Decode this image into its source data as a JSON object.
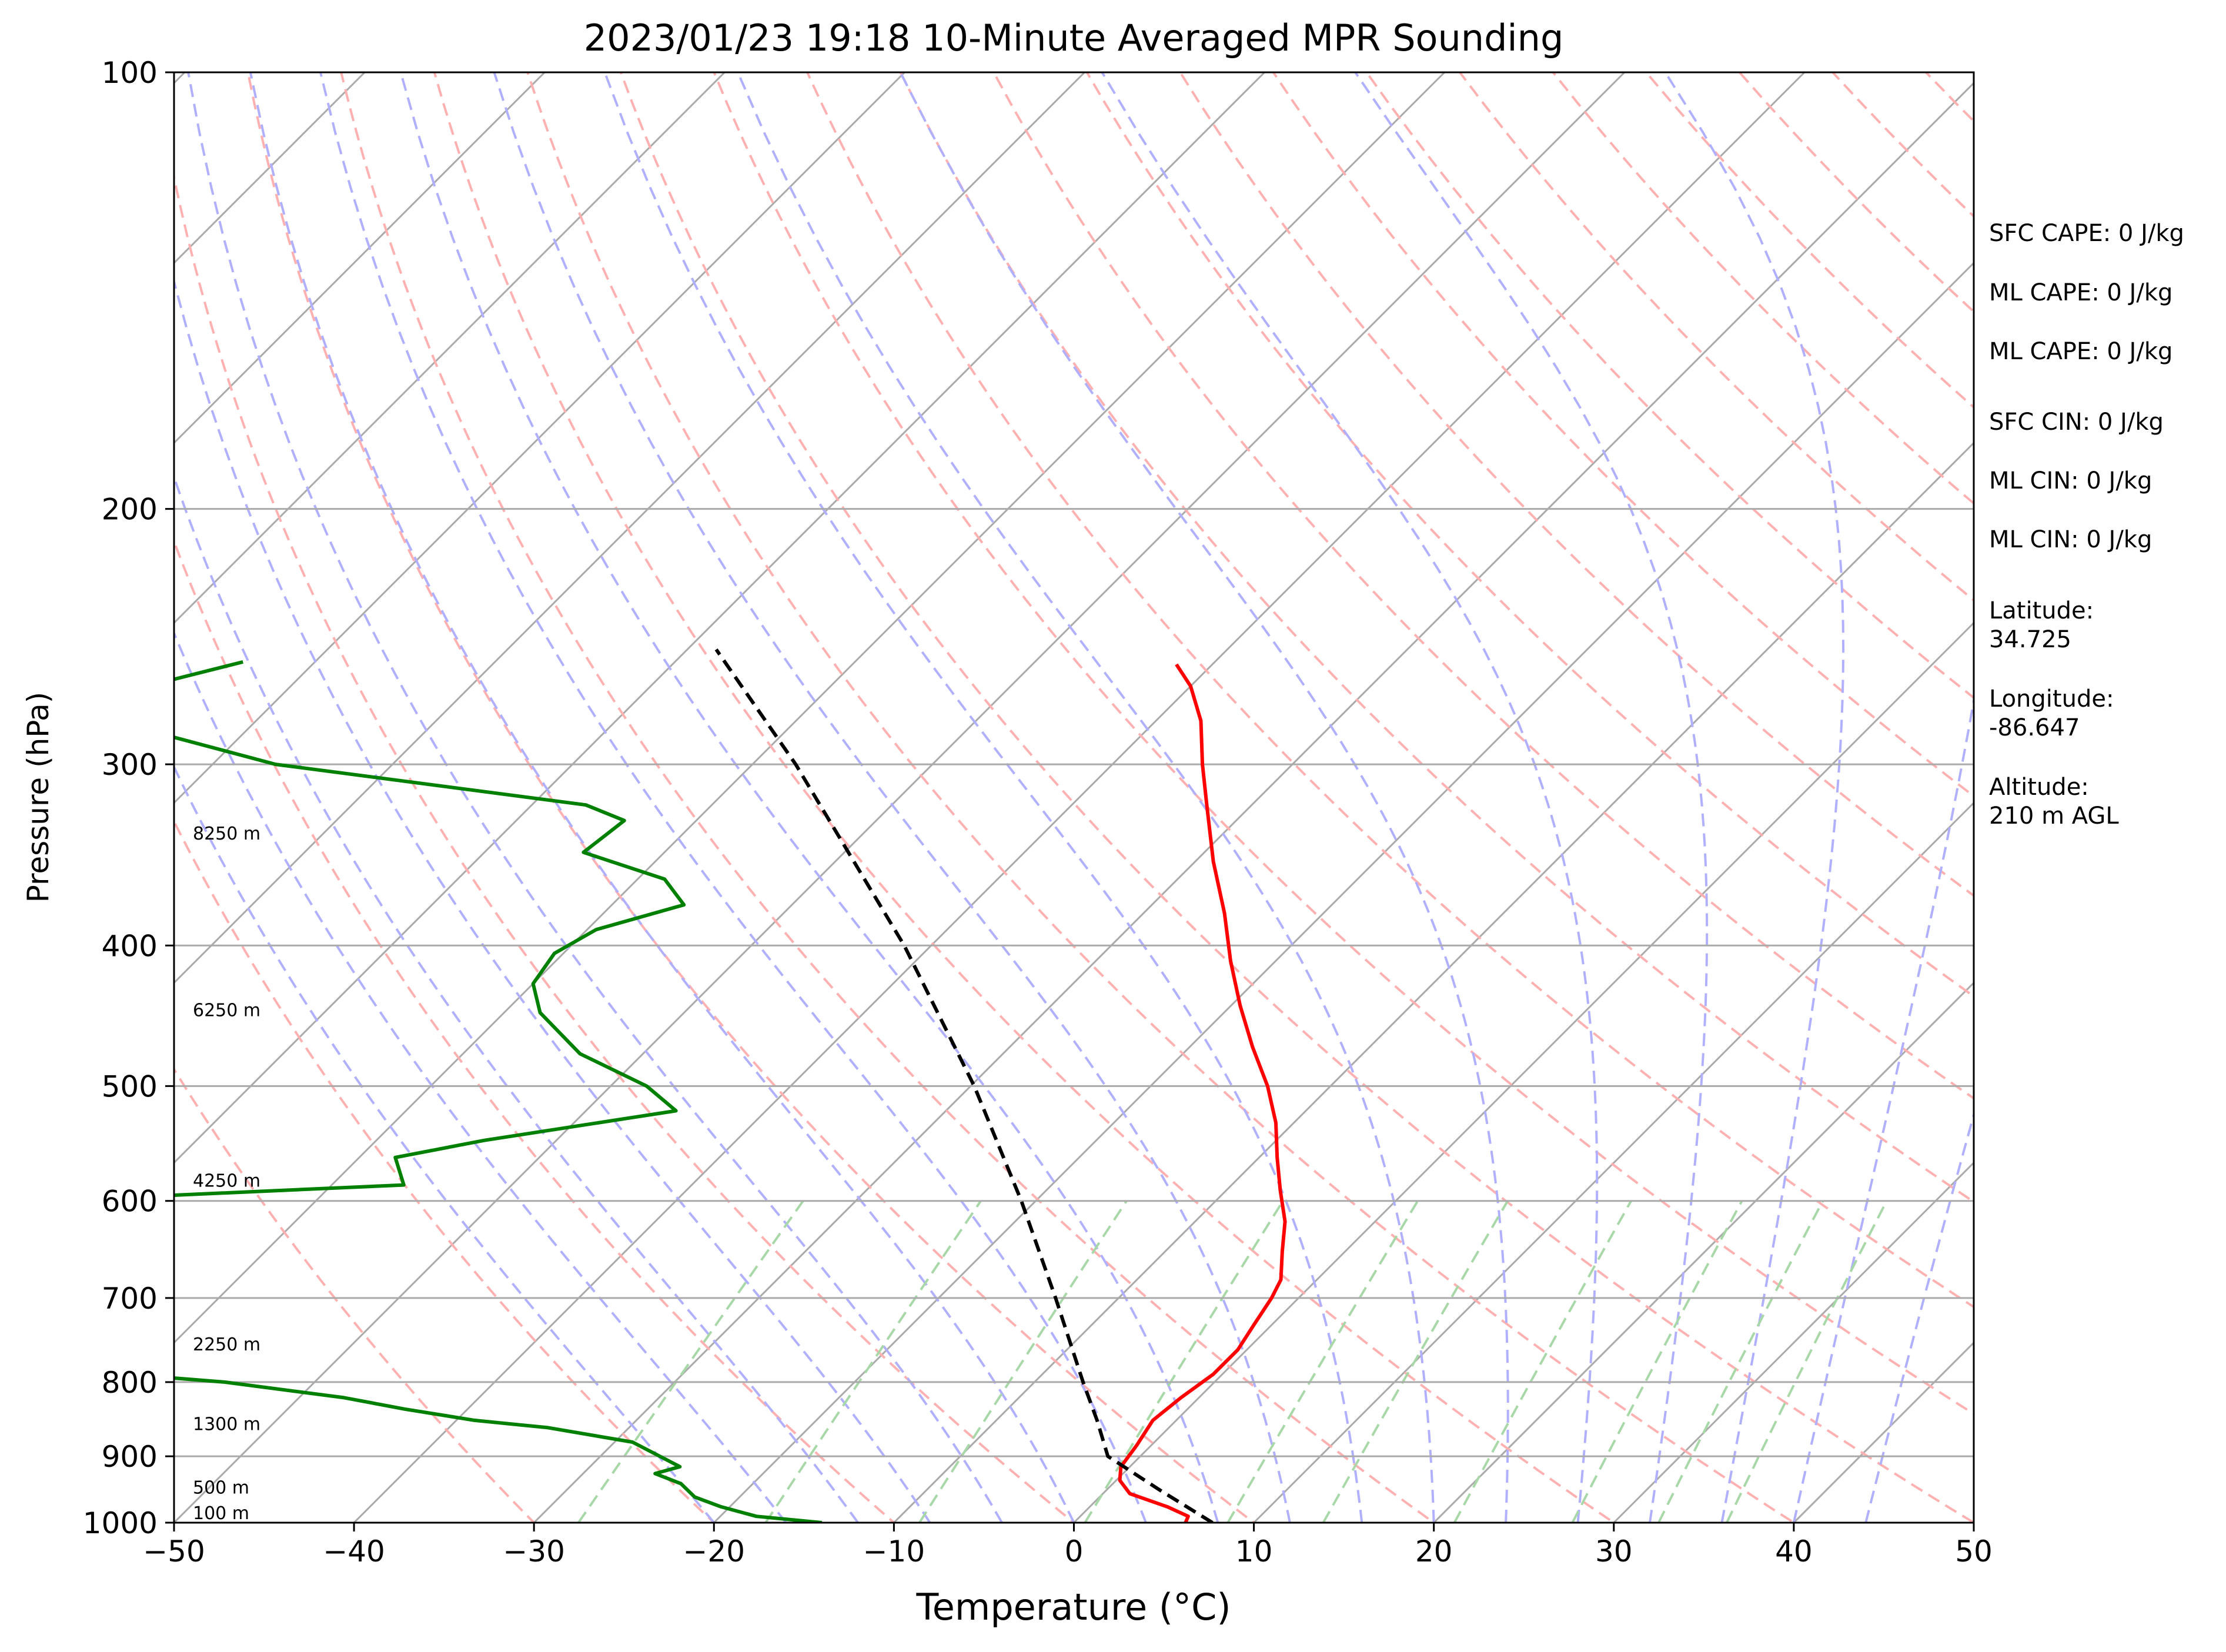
{
  "chart_data": {
    "type": "line",
    "title": "2023/01/23 19:18 10-Minute Averaged MPR Sounding",
    "xlabel": "Temperature (°C)",
    "ylabel": "Pressure (hPa)",
    "xlim": [
      -50,
      50
    ],
    "ylim": [
      1000,
      100
    ],
    "y_scale": "log",
    "skew_t": true,
    "grid": true,
    "x_ticks": [
      -50,
      -40,
      -30,
      -20,
      -10,
      0,
      10,
      20,
      30,
      40,
      50
    ],
    "x_tick_labels": [
      "−50",
      "−40",
      "−30",
      "−20",
      "−10",
      "0",
      "10",
      "20",
      "30",
      "40",
      "50"
    ],
    "y_ticks": [
      100,
      200,
      300,
      400,
      500,
      600,
      700,
      800,
      900,
      1000
    ],
    "y_tick_labels": [
      "100",
      "200",
      "300",
      "400",
      "500",
      "600",
      "700",
      "800",
      "900",
      "1000"
    ],
    "series": [
      {
        "color": "#ff0000",
        "points": [
          [
            1000,
            6.2
          ],
          [
            990,
            6.0
          ],
          [
            975,
            4.3
          ],
          [
            955,
            1.5
          ],
          [
            935,
            0.2
          ],
          [
            915,
            -0.5
          ],
          [
            885,
            -0.8
          ],
          [
            850,
            -1.3
          ],
          [
            820,
            -1.0
          ],
          [
            790,
            -0.5
          ],
          [
            760,
            -0.5
          ],
          [
            730,
            -1.0
          ],
          [
            700,
            -1.5
          ],
          [
            680,
            -2.0
          ],
          [
            650,
            -3.5
          ],
          [
            620,
            -5.0
          ],
          [
            590,
            -7.0
          ],
          [
            560,
            -9.0
          ],
          [
            530,
            -11.0
          ],
          [
            500,
            -13.5
          ],
          [
            470,
            -16.5
          ],
          [
            440,
            -19.5
          ],
          [
            410,
            -22.5
          ],
          [
            380,
            -25.5
          ],
          [
            350,
            -29.0
          ],
          [
            320,
            -32.5
          ],
          [
            300,
            -35.0
          ],
          [
            280,
            -37.5
          ],
          [
            265,
            -40.0
          ],
          [
            256,
            -42.0
          ]
        ]
      },
      {
        "color": "#008000",
        "points": [
          [
            1000,
            -14.0
          ],
          [
            990,
            -18.0
          ],
          [
            975,
            -20.5
          ],
          [
            960,
            -22.5
          ],
          [
            940,
            -24.0
          ],
          [
            925,
            -26.0
          ],
          [
            915,
            -25.0
          ],
          [
            880,
            -29.0
          ],
          [
            860,
            -34.5
          ],
          [
            850,
            -39.0
          ],
          [
            835,
            -43.5
          ],
          [
            820,
            -47.5
          ],
          [
            800,
            -55.0
          ],
          [
            785,
            -64.0
          ],
          [
            770,
            -79.0
          ],
          [
            757,
            -95.0
          ],
          [
            740,
            -97.0
          ],
          [
            727,
            -89.5
          ],
          [
            705,
            -97.0
          ],
          [
            610,
            -96.0
          ],
          [
            598,
            -72.5
          ],
          [
            585,
            -56.0
          ],
          [
            560,
            -58.0
          ],
          [
            545,
            -54.0
          ],
          [
            520,
            -45.0
          ],
          [
            500,
            -48.0
          ],
          [
            475,
            -53.5
          ],
          [
            445,
            -58.0
          ],
          [
            425,
            -60.0
          ],
          [
            405,
            -60.5
          ],
          [
            390,
            -59.5
          ],
          [
            375,
            -56.0
          ],
          [
            360,
            -58.5
          ],
          [
            345,
            -64.5
          ],
          [
            328,
            -64.0
          ],
          [
            320,
            -67.0
          ],
          [
            300,
            -86.5
          ],
          [
            275,
            -101.0
          ],
          [
            265,
            -98.0
          ],
          [
            255,
            -94.0
          ]
        ]
      },
      {
        "color": "#000000",
        "dashed": true,
        "points": [
          [
            1000,
            7.7
          ],
          [
            950,
            3.0
          ],
          [
            900,
            -1.8
          ],
          [
            850,
            -4.4
          ],
          [
            800,
            -7.3
          ],
          [
            700,
            -13.5
          ],
          [
            600,
            -20.8
          ],
          [
            500,
            -29.8
          ],
          [
            400,
            -41.5
          ],
          [
            300,
            -57.6
          ],
          [
            250,
            -68.4
          ]
        ]
      }
    ],
    "height_labels": [
      {
        "p": 1000,
        "text": "100 m"
      },
      {
        "p": 960,
        "text": "500 m"
      },
      {
        "p": 868,
        "text": "1300 m"
      },
      {
        "p": 765,
        "text": "2250 m"
      },
      {
        "p": 590,
        "text": "4250 m"
      },
      {
        "p": 450,
        "text": "6250 m"
      },
      {
        "p": 340,
        "text": "8250 m"
      }
    ],
    "annotations": {
      "sfc_cape": "SFC CAPE: 0 J/kg",
      "ml_cape_1": "ML CAPE: 0 J/kg",
      "ml_cape_2": "ML CAPE: 0 J/kg",
      "sfc_cin": "SFC CIN: 0 J/kg",
      "ml_cin_1": "ML CIN: 0 J/kg",
      "ml_cin_2": "ML CIN: 0 J/kg",
      "latitude": "Latitude:\n34.725",
      "longitude": "Longitude:\n-86.647",
      "altitude": "Altitude:\n210 m AGL"
    },
    "colors": {
      "isotherm": "#aaaaaa",
      "dry_adiabat": "#ffb0b0",
      "moist_adiabat": "#b0b0ff",
      "mixing_ratio": "#a8d8a8"
    }
  }
}
